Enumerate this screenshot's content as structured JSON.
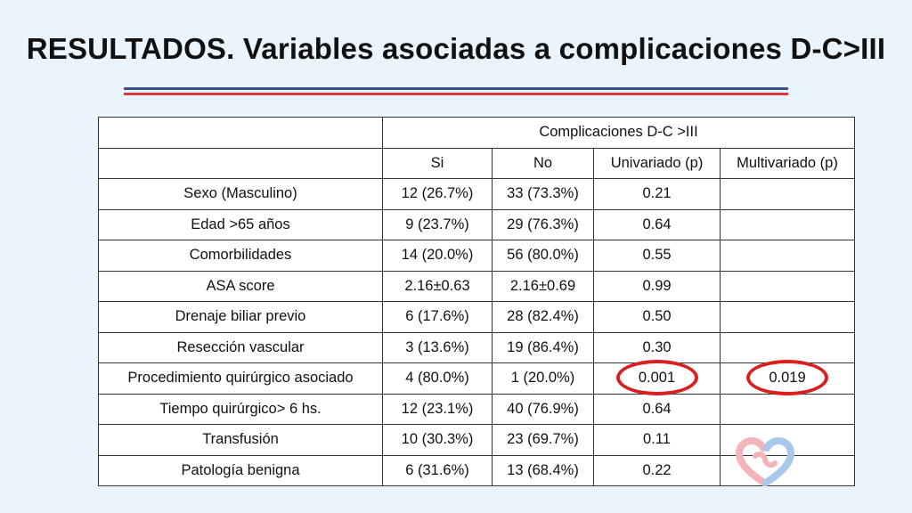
{
  "slide": {
    "title": "RESULTADOS. Variables asociadas a complicaciones D-C>III",
    "accent_colors": {
      "rule_blue": "#3a4f8f",
      "rule_red": "#d63a3a",
      "highlight_ring": "#d92020"
    }
  },
  "table": {
    "group_header": "Complicaciones D-C >III",
    "columns": [
      "",
      "Si",
      "No",
      "Univariado (p)",
      "Multivariado (p)"
    ],
    "rows": [
      [
        "Sexo (Masculino)",
        "12 (26.7%)",
        "33 (73.3%)",
        "0.21",
        ""
      ],
      [
        "Edad >65 años",
        "9 (23.7%)",
        "29 (76.3%)",
        "0.64",
        ""
      ],
      [
        "Comorbilidades",
        "14 (20.0%)",
        "56 (80.0%)",
        "0.55",
        ""
      ],
      [
        "ASA score",
        "2.16±0.63",
        "2.16±0.69",
        "0.99",
        ""
      ],
      [
        "Drenaje biliar previo",
        "6 (17.6%)",
        "28 (82.4%)",
        "0.50",
        ""
      ],
      [
        "Resección vascular",
        "3 (13.6%)",
        "19 (86.4%)",
        "0.30",
        ""
      ],
      [
        "Procedimiento quirúrgico asociado",
        "4 (80.0%)",
        "1 (20.0%)",
        "0.001",
        "0.019"
      ],
      [
        "Tiempo quirúrgico> 6 hs.",
        "12 (23.1%)",
        "40 (76.9%)",
        "0.64",
        ""
      ],
      [
        "Transfusión",
        "10 (30.3%)",
        "23 (69.7%)",
        "0.11",
        ""
      ],
      [
        "Patología benigna",
        "6 (31.6%)",
        "13 (68.4%)",
        "0.22",
        ""
      ]
    ]
  },
  "logo": {
    "icon": "heart-logo-icon",
    "colors": [
      "#f3b4ba",
      "#a8c8ea"
    ]
  }
}
